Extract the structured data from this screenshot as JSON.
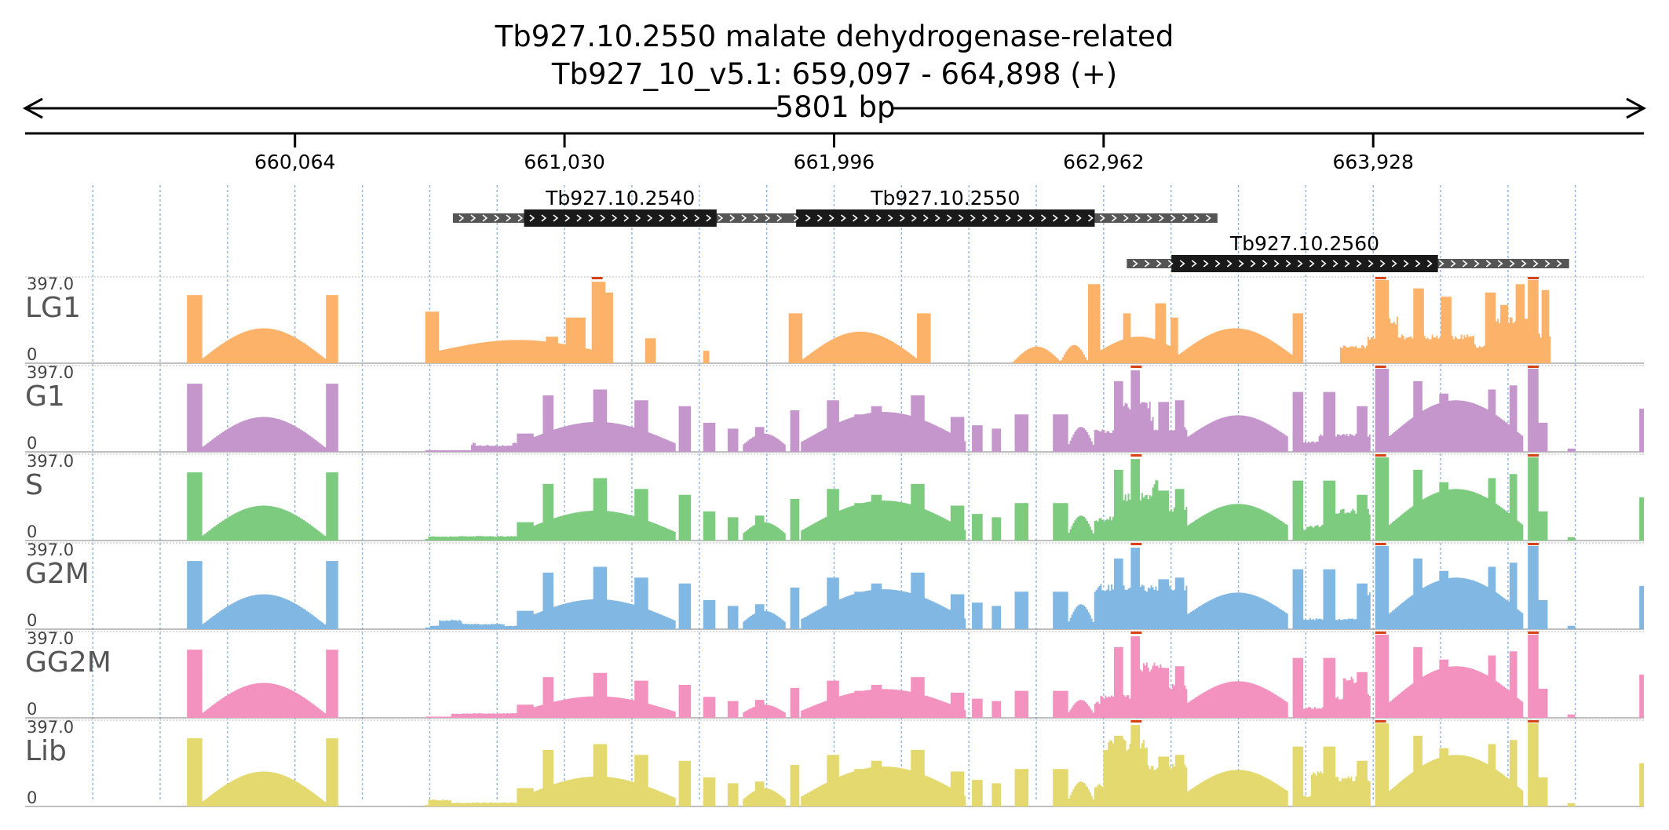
{
  "header": {
    "title": "Tb927.10.2550  malate dehydrogenase-related",
    "locus": "Tb927_10_v5.1: 659,097 - 664,898 (+)",
    "span": "5801 bp"
  },
  "region": {
    "start": 659097,
    "end": 664898
  },
  "ruler": {
    "ticks": [
      {
        "pos": 660064,
        "label": "660,064"
      },
      {
        "pos": 661030,
        "label": "661,030"
      },
      {
        "pos": 661996,
        "label": "661,996"
      },
      {
        "pos": 662962,
        "label": "662,962"
      },
      {
        "pos": 663928,
        "label": "663,928"
      }
    ]
  },
  "genes": [
    {
      "name": "Tb927.10.2540",
      "row": 0,
      "utr": [
        660630,
        661930
      ],
      "cds": [
        660885,
        661575
      ],
      "strand": "+"
    },
    {
      "name": "Tb927.10.2550",
      "row": 0,
      "utr": [
        661830,
        663370
      ],
      "cds": [
        661860,
        662930
      ],
      "strand": "+"
    },
    {
      "name": "Tb927.10.2560",
      "row": 1,
      "utr": [
        663045,
        664630
      ],
      "cds": [
        663205,
        664160
      ],
      "strand": "+"
    }
  ],
  "tracks": [
    {
      "name": "LG1",
      "max_label": "397.0",
      "min_label": "0",
      "color": "#fdae61",
      "seed": 11,
      "profile": "lg1"
    },
    {
      "name": "G1",
      "max_label": "397.0",
      "min_label": "0",
      "color": "#c190c8",
      "seed": 23,
      "profile": "std"
    },
    {
      "name": "S",
      "max_label": "397.0",
      "min_label": "0",
      "color": "#76c878",
      "seed": 37,
      "profile": "std"
    },
    {
      "name": "G2M",
      "max_label": "397.0",
      "min_label": "0",
      "color": "#7ab4e2",
      "seed": 41,
      "profile": "std"
    },
    {
      "name": "GG2M",
      "max_label": "397.0",
      "min_label": "0",
      "color": "#f28cbc",
      "seed": 53,
      "profile": "gg2m"
    },
    {
      "name": "Lib",
      "max_label": "397.0",
      "min_label": "0",
      "color": "#e1d766",
      "seed": 67,
      "profile": "std"
    }
  ],
  "colors": {
    "gene_cds": "#1a1a1a",
    "gene_utr": "#555555",
    "grid": "#8fb4dc",
    "clip": "#d84315"
  }
}
